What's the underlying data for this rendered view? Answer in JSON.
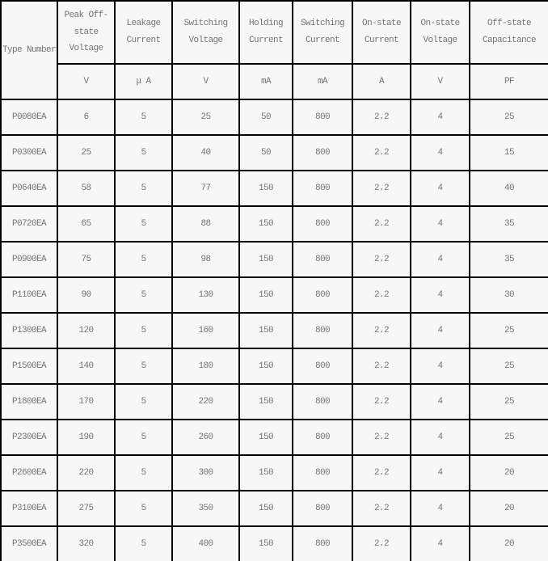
{
  "chart_data": {
    "type": "table",
    "columns": [
      "Type Number",
      "Peak Off-state Voltage",
      "Leakage Current",
      "Switching Voltage",
      "Holding Current",
      "Switching Current",
      "On-state Current",
      "On-state Voltage",
      "Off-state Capacitance"
    ],
    "units": [
      "",
      "V",
      "μ A",
      "V",
      "mA",
      "mA",
      "A",
      "V",
      "PF"
    ],
    "rows": [
      [
        "P0080EA",
        6,
        5,
        25,
        50,
        800,
        2.2,
        4,
        25
      ],
      [
        "P0300EA",
        25,
        5,
        40,
        50,
        800,
        2.2,
        4,
        15
      ],
      [
        "P0640EA",
        58,
        5,
        77,
        150,
        800,
        2.2,
        4,
        40
      ],
      [
        "P0720EA",
        65,
        5,
        88,
        150,
        800,
        2.2,
        4,
        35
      ],
      [
        "P0900EA",
        75,
        5,
        98,
        150,
        800,
        2.2,
        4,
        35
      ],
      [
        "P1100EA",
        90,
        5,
        130,
        150,
        800,
        2.2,
        4,
        30
      ],
      [
        "P1300EA",
        120,
        5,
        160,
        150,
        800,
        2.2,
        4,
        25
      ],
      [
        "P1500EA",
        140,
        5,
        180,
        150,
        800,
        2.2,
        4,
        25
      ],
      [
        "P1800EA",
        170,
        5,
        220,
        150,
        800,
        2.2,
        4,
        25
      ],
      [
        "P2300EA",
        190,
        5,
        260,
        150,
        800,
        2.2,
        4,
        25
      ],
      [
        "P2600EA",
        220,
        5,
        300,
        150,
        800,
        2.2,
        4,
        20
      ],
      [
        "P3100EA",
        275,
        5,
        350,
        150,
        800,
        2.2,
        4,
        20
      ],
      [
        "P3500EA",
        320,
        5,
        400,
        150,
        800,
        2.2,
        4,
        20
      ]
    ]
  },
  "display": {
    "header_lines": [
      "Type Number",
      "Peak Off-\nstate\nVoltage",
      "Leakage\nCurrent",
      "Switching\nVoltage",
      "Holding\nCurrent",
      "Switching\nCurrent",
      "On-state\nCurrent",
      "On-state\nVoltage",
      "Off-state\nCapacitance"
    ],
    "colors": {
      "border": "#000000",
      "cell_background": "#f7f7f7",
      "text": "#757575"
    }
  }
}
